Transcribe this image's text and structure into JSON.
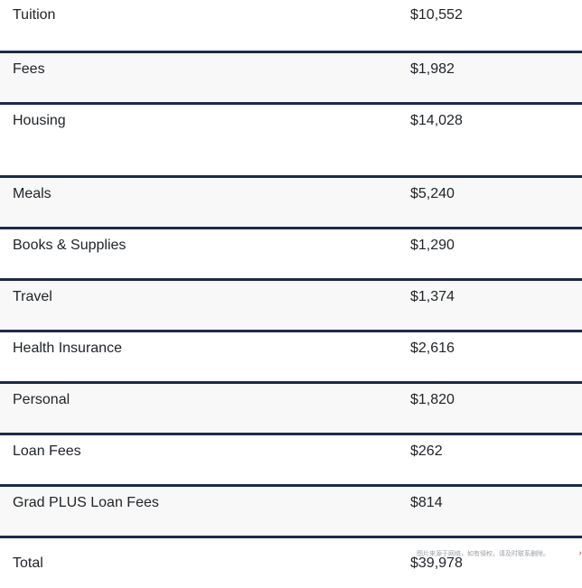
{
  "table": {
    "rows": [
      {
        "label": "Tuition",
        "value": "$10,552"
      },
      {
        "label": "Fees",
        "value": "$1,982"
      },
      {
        "label": "Housing",
        "value": "$14,028"
      },
      {
        "label": "Meals",
        "value": "$5,240"
      },
      {
        "label": "Books & Supplies",
        "value": "$1,290"
      },
      {
        "label": "Travel",
        "value": "$1,374"
      },
      {
        "label": "Health Insurance",
        "value": "$2,616"
      },
      {
        "label": "Personal",
        "value": "$1,820"
      },
      {
        "label": "Loan Fees",
        "value": "$262"
      },
      {
        "label": "Grad PLUS Loan Fees",
        "value": "$814"
      },
      {
        "label": "Total",
        "value": "$39,978"
      }
    ]
  },
  "watermark": {
    "text": "图片来源于网络，如有侵权，请及时联系删除。",
    "corner": "›"
  }
}
